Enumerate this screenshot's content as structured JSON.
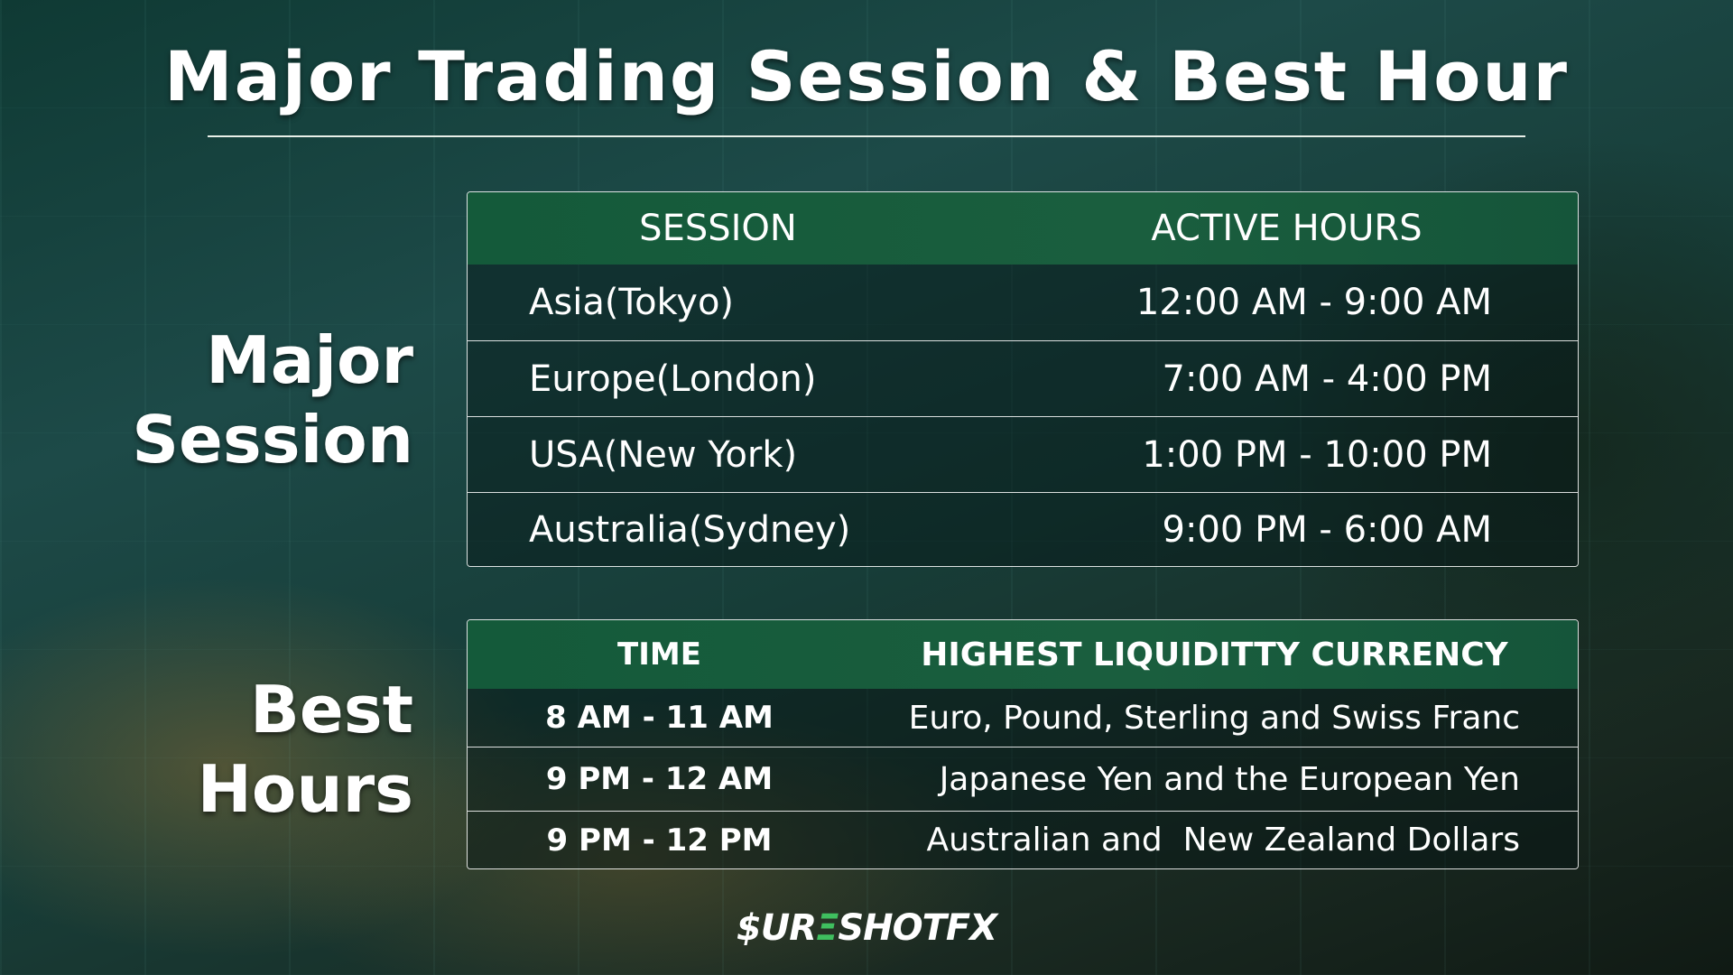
{
  "title": "Major Trading Session & Best Hour",
  "major_label": [
    "Major",
    "Session"
  ],
  "best_label": [
    "Best",
    "Hours"
  ],
  "sessions": {
    "headers": [
      "SESSION",
      "ACTIVE HOURS"
    ],
    "rows": [
      [
        "Asia(Tokyo)",
        "12:00 AM - 9:00 AM"
      ],
      [
        "Europe(London)",
        "7:00 AM - 4:00 PM"
      ],
      [
        "USA(New York)",
        "1:00 PM - 10:00 PM"
      ],
      [
        "Australia(Sydney)",
        "9:00 PM - 6:00 AM"
      ]
    ]
  },
  "best_hours": {
    "headers": [
      "TIME",
      "HIGHEST LIQUIDITTY CURRENCY"
    ],
    "rows": [
      [
        "8 AM - 11 AM",
        "Euro, Pound, Sterling and Swiss Franc"
      ],
      [
        "9 PM - 12 AM",
        "Japanese Yen and the European Yen"
      ],
      [
        "9 PM - 12 PM",
        "Australian and  New Zealand Dollars"
      ]
    ]
  },
  "logo": {
    "part1": "$UR",
    "part2": "Ξ",
    "part3": "SHOTFX",
    "accent": "#3fbf5f"
  }
}
